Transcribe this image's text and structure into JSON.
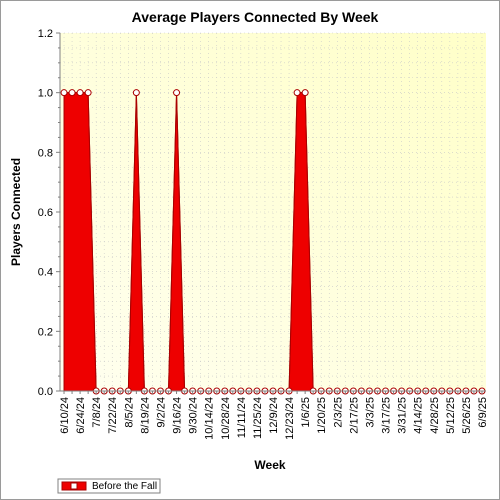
{
  "chart_data": {
    "type": "area",
    "title": "Average Players Connected By Week",
    "xlabel": "Week",
    "ylabel": "Players Connected",
    "ylim": [
      0,
      1.2
    ],
    "yticks": [
      "0.0",
      "0.2",
      "0.4",
      "0.6",
      "0.8",
      "1.0",
      "1.2"
    ],
    "grid": true,
    "legend_position": "bottom-left",
    "x": [
      "6/10/24",
      "6/17/24",
      "6/24/24",
      "7/1/24",
      "7/8/24",
      "7/15/24",
      "7/22/24",
      "7/29/24",
      "8/5/24",
      "8/12/24",
      "8/19/24",
      "8/26/24",
      "9/2/24",
      "9/9/24",
      "9/16/24",
      "9/23/24",
      "9/30/24",
      "10/7/24",
      "10/14/24",
      "10/21/24",
      "10/28/24",
      "11/4/24",
      "11/11/24",
      "11/18/24",
      "11/25/24",
      "12/2/24",
      "12/9/24",
      "12/16/24",
      "12/23/24",
      "12/30/24",
      "1/6/25",
      "1/13/25",
      "1/20/25",
      "1/27/25",
      "2/3/25",
      "2/10/25",
      "2/17/25",
      "2/24/25",
      "3/3/25",
      "3/10/25",
      "3/17/25",
      "3/24/25",
      "3/31/25",
      "4/7/25",
      "4/14/25",
      "4/21/25",
      "4/28/25",
      "5/5/25",
      "5/12/25",
      "5/19/25",
      "5/26/25",
      "6/2/25",
      "6/9/25"
    ],
    "series": [
      {
        "name": "Before the Fall",
        "values": [
          1,
          1,
          1,
          1,
          0,
          0,
          0,
          0,
          0,
          1,
          0,
          0,
          0,
          0,
          1,
          0,
          0,
          0,
          0,
          0,
          0,
          0,
          0,
          0,
          0,
          0,
          0,
          0,
          0,
          1,
          1,
          0,
          0,
          0,
          0,
          0,
          0,
          0,
          0,
          0,
          0,
          0,
          0,
          0,
          0,
          0,
          0,
          0,
          0,
          0,
          0,
          0,
          0
        ]
      }
    ],
    "tick_every": 2,
    "colors": {
      "fill": "#ee0000",
      "line": "#aa0000",
      "marker_fill": "#ffffff",
      "plot_bg_light": "#fffff0",
      "plot_bg_dark": "#ffffc8"
    }
  }
}
